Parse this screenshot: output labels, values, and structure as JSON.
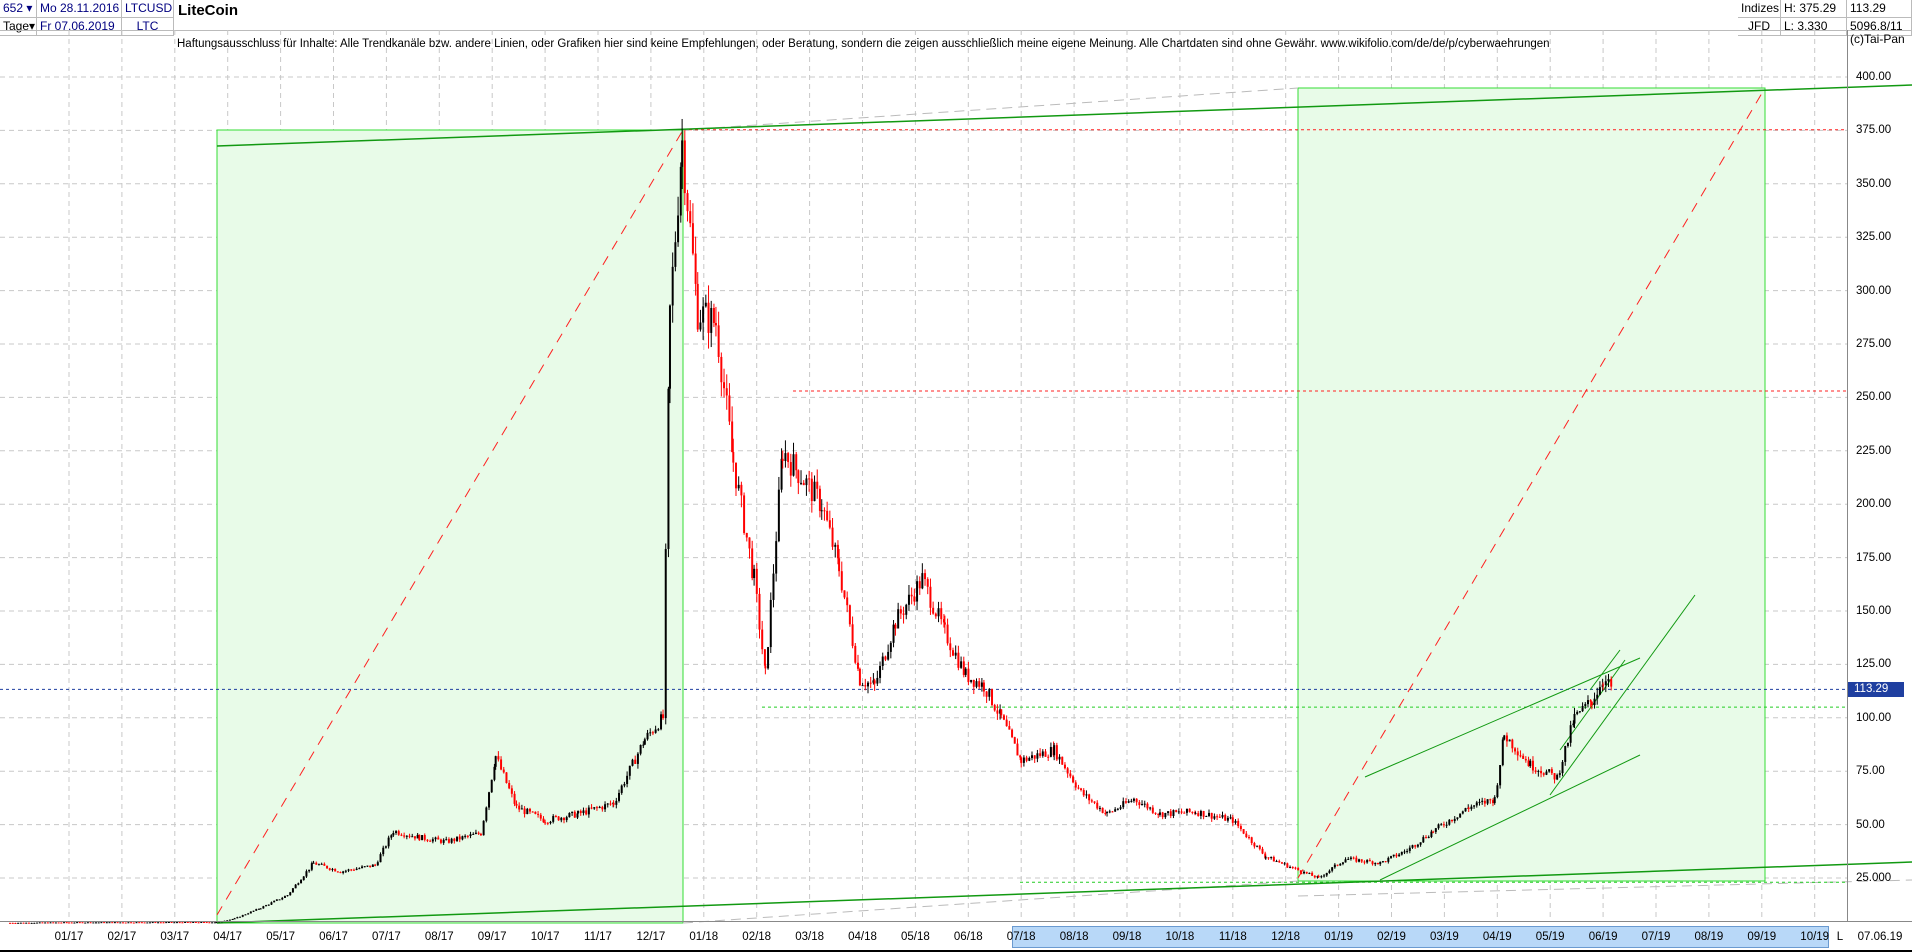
{
  "header": {
    "bars": "652",
    "period": "Tage",
    "date_from": "Mo 28.11.2016",
    "date_to": "Fr 07.06.2019",
    "symbol": "LTCUSD",
    "symbol_short": "LTC",
    "title": "LiteCoin",
    "group": "Indizes",
    "source": "JFD",
    "high": "H: 375.29",
    "low": "L: 3.330",
    "last": "113.29",
    "extra": "5096.8/11",
    "copyright": "(c)Tai-Pan"
  },
  "disclaimer": "Haftungsausschluss für Inhalte: Alle Trendkanäle bzw. andere Linien, oder Grafiken hier sind keine Empfehlungen, oder Beratung, sondern die zeigen ausschließlich meine eigene Meinung. Alle Chartdaten sind ohne Gewähr.  www.wikifolio.com/de/de/p/cyberwaehrungen",
  "x_end_label": "L",
  "x_end_date": "07.06.19",
  "colors": {
    "up": "#000000",
    "down": "#ff0000",
    "box_fill": "#e8fbe8",
    "box_line": "#33dd33",
    "trend": "#119911",
    "level_red": "#ff2020",
    "current": "#1f3fa0"
  },
  "chart_data": {
    "type": "candlestick",
    "ylim": [
      0,
      400
    ],
    "y_ticks": [
      "25.000",
      "50.00",
      "75.00",
      "100.00",
      "125.00",
      "150.00",
      "175.00",
      "200.00",
      "225.00",
      "250.00",
      "275.00",
      "300.00",
      "325.00",
      "350.00",
      "375.00",
      "400.00"
    ],
    "x_ticks": [
      "01/17",
      "02/17",
      "03/17",
      "04/17",
      "05/17",
      "06/17",
      "07/17",
      "08/17",
      "09/17",
      "10/17",
      "11/17",
      "12/17",
      "01/18",
      "02/18",
      "03/18",
      "04/18",
      "05/18",
      "06/18",
      "07/18",
      "08/18",
      "09/18",
      "10/18",
      "11/18",
      "12/18",
      "01/19",
      "02/19",
      "03/19",
      "04/19",
      "05/19",
      "06/19",
      "07/19",
      "08/19",
      "09/19",
      "10/19"
    ],
    "current_price": "113.29",
    "levels": [
      375.29,
      253,
      105
    ],
    "closes": [
      [
        "2016-11-28",
        4
      ],
      [
        "2017-01-01",
        4.2
      ],
      [
        "2017-03-25",
        4.3
      ],
      [
        "2017-04-05",
        6
      ],
      [
        "2017-04-20",
        11
      ],
      [
        "2017-05-05",
        17
      ],
      [
        "2017-05-20",
        32
      ],
      [
        "2017-06-05",
        28
      ],
      [
        "2017-06-25",
        31
      ],
      [
        "2017-07-05",
        47
      ],
      [
        "2017-07-20",
        44
      ],
      [
        "2017-08-05",
        42
      ],
      [
        "2017-08-25",
        46
      ],
      [
        "2017-09-03",
        82
      ],
      [
        "2017-09-15",
        58
      ],
      [
        "2017-10-01",
        52
      ],
      [
        "2017-10-20",
        55
      ],
      [
        "2017-11-10",
        60
      ],
      [
        "2017-11-28",
        90
      ],
      [
        "2017-12-08",
        100
      ],
      [
        "2017-12-12",
        290
      ],
      [
        "2017-12-19",
        370
      ],
      [
        "2017-12-28",
        290
      ],
      [
        "2018-01-08",
        285
      ],
      [
        "2018-01-18",
        220
      ],
      [
        "2018-01-30",
        165
      ],
      [
        "2018-02-06",
        120
      ],
      [
        "2018-02-16",
        225
      ],
      [
        "2018-02-25",
        215
      ],
      [
        "2018-03-08",
        200
      ],
      [
        "2018-03-18",
        170
      ],
      [
        "2018-03-30",
        118
      ],
      [
        "2018-04-08",
        115
      ],
      [
        "2018-04-20",
        145
      ],
      [
        "2018-05-05",
        165
      ],
      [
        "2018-05-18",
        140
      ],
      [
        "2018-05-30",
        120
      ],
      [
        "2018-06-10",
        115
      ],
      [
        "2018-06-20",
        100
      ],
      [
        "2018-07-01",
        80
      ],
      [
        "2018-07-20",
        85
      ],
      [
        "2018-08-05",
        65
      ],
      [
        "2018-08-20",
        55
      ],
      [
        "2018-09-05",
        62
      ],
      [
        "2018-09-20",
        55
      ],
      [
        "2018-10-10",
        56
      ],
      [
        "2018-11-01",
        52
      ],
      [
        "2018-11-20",
        35
      ],
      [
        "2018-12-10",
        28
      ],
      [
        "2018-12-20",
        25
      ],
      [
        "2019-01-05",
        34
      ],
      [
        "2019-01-25",
        32
      ],
      [
        "2019-02-10",
        38
      ],
      [
        "2019-02-25",
        47
      ],
      [
        "2019-03-15",
        58
      ],
      [
        "2019-03-30",
        62
      ],
      [
        "2019-04-05",
        92
      ],
      [
        "2019-04-20",
        78
      ],
      [
        "2019-05-05",
        72
      ],
      [
        "2019-05-15",
        100
      ],
      [
        "2019-05-25",
        108
      ],
      [
        "2019-06-01",
        118
      ],
      [
        "2019-06-07",
        113.29
      ]
    ]
  }
}
